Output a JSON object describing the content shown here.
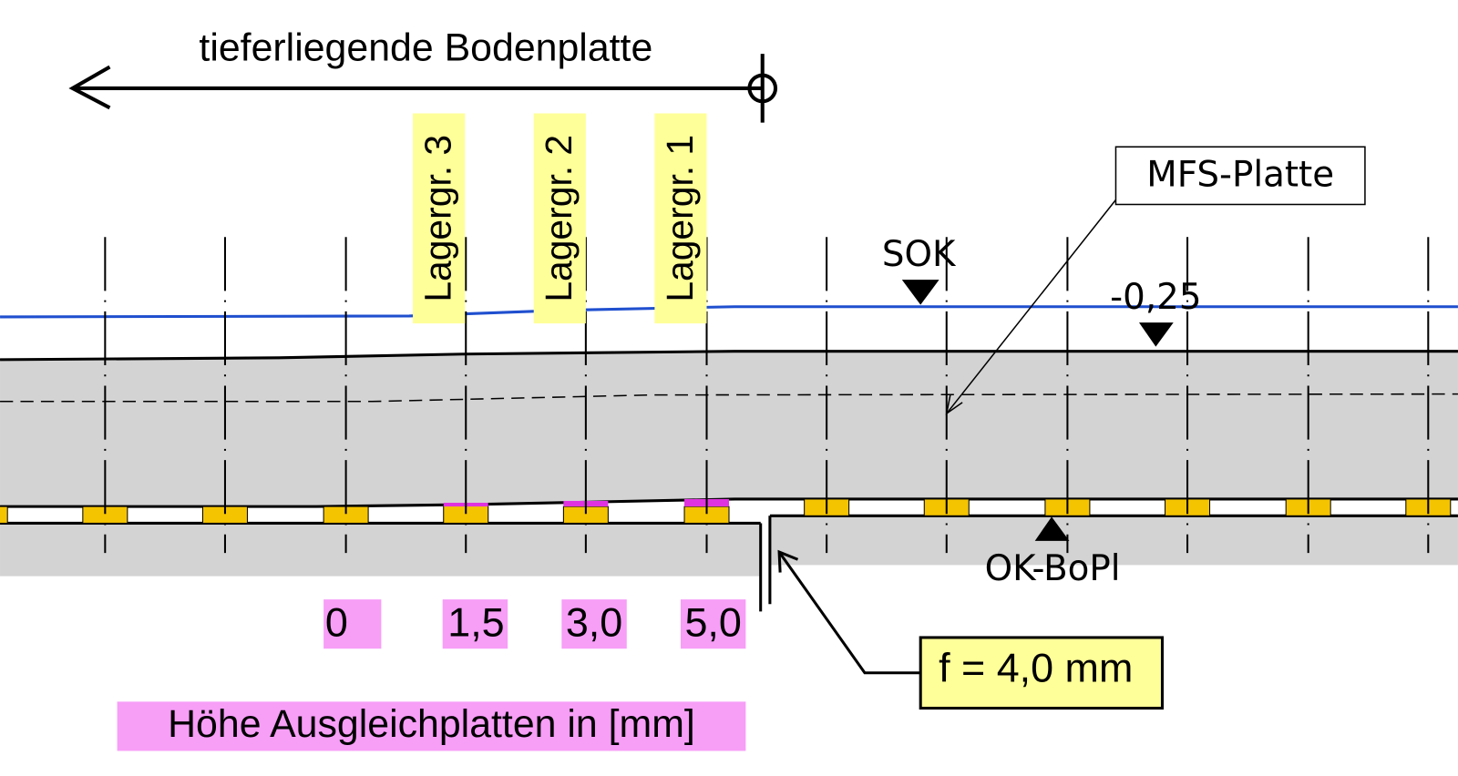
{
  "header": {
    "title": "tieferliegende Bodenplatte"
  },
  "bearing_groups": [
    "Lagergr. 3",
    "Lagergr. 2",
    "Lagergr. 1"
  ],
  "labels": {
    "plate": "MFS-Platte",
    "sok": "SOK",
    "level": "-0,25",
    "ok_bopl": "OK-BoPl",
    "deflection": "f = 4,0 mm"
  },
  "shim_heights": [
    "0",
    "1,5",
    "3,0",
    "5,0"
  ],
  "legend": "Höhe Ausgleichplatten in [mm]"
}
